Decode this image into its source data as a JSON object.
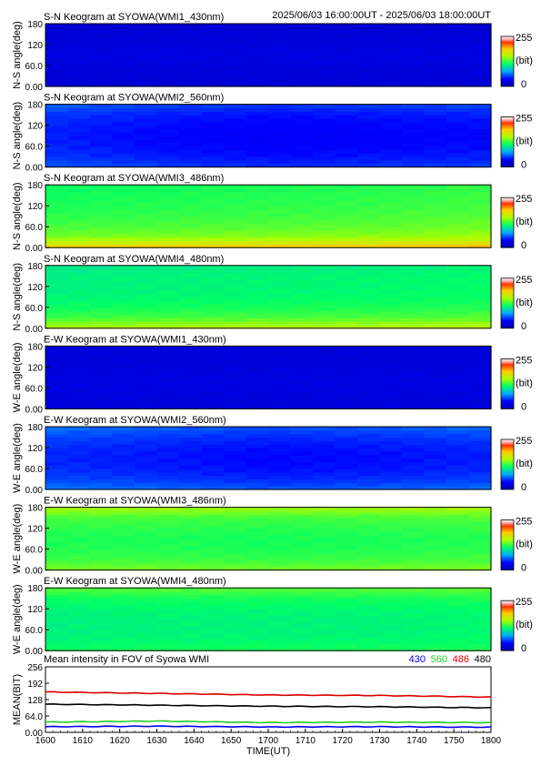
{
  "header": {
    "time_range": "2025/06/03 16:00:00UT - 2025/06/03 18:00:00UT"
  },
  "chart_data": [
    {
      "type": "heatmap",
      "title": "S-N Keogram at SYOWA(WMI1_430nm)",
      "ylabel": "N-S angle(deg)",
      "yticks": [
        "0.00",
        "60.0",
        "120",
        "180"
      ],
      "ylim": [
        0,
        180
      ],
      "colorbar": {
        "min": "0",
        "max": "255",
        "unit": "(bit)"
      },
      "level_profile": [
        20,
        20,
        22,
        24,
        22,
        20,
        18
      ],
      "time_trend": [
        0,
        0,
        0,
        0,
        0
      ]
    },
    {
      "type": "heatmap",
      "title": "S-N Keogram at SYOWA(WMI2_560nm)",
      "ylabel": "N-S angle(deg)",
      "yticks": [
        "0.00",
        "60.0",
        "120",
        "180"
      ],
      "ylim": [
        0,
        180
      ],
      "colorbar": {
        "min": "0",
        "max": "255",
        "unit": "(bit)"
      },
      "level_profile": [
        52,
        44,
        40,
        38,
        40,
        44,
        54
      ],
      "time_trend": [
        6,
        0,
        -4,
        -2,
        0
      ]
    },
    {
      "type": "heatmap",
      "title": "S-N Keogram at SYOWA(WMI3_486nm)",
      "ylabel": "N-S angle(deg)",
      "yticks": [
        "0.00",
        "60.0",
        "120",
        "180"
      ],
      "ylim": [
        0,
        180
      ],
      "colorbar": {
        "min": "0",
        "max": "255",
        "unit": "(bit)"
      },
      "level_profile": [
        190,
        142,
        130,
        124,
        120,
        118,
        116
      ],
      "time_trend": [
        0,
        2,
        4,
        6,
        10
      ]
    },
    {
      "type": "heatmap",
      "title": "S-N Keogram at SYOWA(WMI4_480nm)",
      "ylabel": "N-S angle(deg)",
      "yticks": [
        "0.00",
        "60.0",
        "120",
        "180"
      ],
      "ylim": [
        0,
        180
      ],
      "colorbar": {
        "min": "0",
        "max": "255",
        "unit": "(bit)"
      },
      "level_profile": [
        158,
        128,
        116,
        110,
        108,
        108,
        104
      ],
      "time_trend": [
        0,
        2,
        3,
        4,
        6
      ]
    },
    {
      "type": "heatmap",
      "title": "E-W Keogram at SYOWA(WMI1_430nm)",
      "ylabel": "W-E angle(deg)",
      "yticks": [
        "0.00",
        "60.0",
        "120",
        "180"
      ],
      "ylim": [
        0,
        180
      ],
      "colorbar": {
        "min": "0",
        "max": "255",
        "unit": "(bit)"
      },
      "level_profile": [
        22,
        22,
        24,
        24,
        22,
        22,
        22
      ],
      "time_trend": [
        0,
        0,
        0,
        0,
        0
      ]
    },
    {
      "type": "heatmap",
      "title": "E-W Keogram at SYOWA(WMI2_560nm)",
      "ylabel": "W-E angle(deg)",
      "yticks": [
        "0.00",
        "60.0",
        "120",
        "180"
      ],
      "ylim": [
        0,
        180
      ],
      "colorbar": {
        "min": "0",
        "max": "255",
        "unit": "(bit)"
      },
      "level_profile": [
        62,
        50,
        44,
        42,
        44,
        50,
        60
      ],
      "time_trend": [
        4,
        0,
        -4,
        -2,
        2
      ]
    },
    {
      "type": "heatmap",
      "title": "E-W Keogram at SYOWA(WMI3_486nm)",
      "ylabel": "W-E angle(deg)",
      "yticks": [
        "0.00",
        "60.0",
        "120",
        "180"
      ],
      "ylim": [
        0,
        180
      ],
      "colorbar": {
        "min": "0",
        "max": "255",
        "unit": "(bit)"
      },
      "level_profile": [
        140,
        126,
        120,
        118,
        122,
        128,
        150
      ],
      "time_trend": [
        2,
        2,
        0,
        2,
        4
      ]
    },
    {
      "type": "heatmap",
      "title": "E-W Keogram at SYOWA(WMI4_480nm)",
      "ylabel": "W-E angle(deg)",
      "yticks": [
        "0.00",
        "60.0",
        "120",
        "180"
      ],
      "ylim": [
        0,
        180
      ],
      "colorbar": {
        "min": "0",
        "max": "255",
        "unit": "(bit)"
      },
      "level_profile": [
        118,
        110,
        108,
        108,
        110,
        116,
        132
      ],
      "time_trend": [
        0,
        2,
        2,
        2,
        4
      ]
    },
    {
      "type": "line",
      "title": "Mean intensity in FOV of Syowa WMI",
      "ylabel": "MEAN(BIT)",
      "xlabel": "TIME(UT)",
      "yticks": [
        "0.00",
        "64.0",
        "128",
        "192",
        "256"
      ],
      "ylim": [
        0,
        256
      ],
      "xticks": [
        "1600",
        "1610",
        "1620",
        "1630",
        "1640",
        "1650",
        "1700",
        "1710",
        "1720",
        "1730",
        "1740",
        "1750",
        "1800"
      ],
      "x_hours": [
        16.0,
        16.5,
        17.0,
        17.5,
        18.0
      ],
      "series": [
        {
          "name": "430",
          "color": "#0000ee",
          "values": [
            22,
            24,
            21,
            22,
            20
          ]
        },
        {
          "name": "560",
          "color": "#22cc22",
          "values": [
            40,
            44,
            38,
            40,
            38
          ]
        },
        {
          "name": "486",
          "color": "#dd0000",
          "values": [
            158,
            152,
            146,
            144,
            138
          ]
        },
        {
          "name": "480",
          "color": "#000000",
          "values": [
            110,
            106,
            102,
            100,
            96
          ]
        }
      ]
    }
  ]
}
